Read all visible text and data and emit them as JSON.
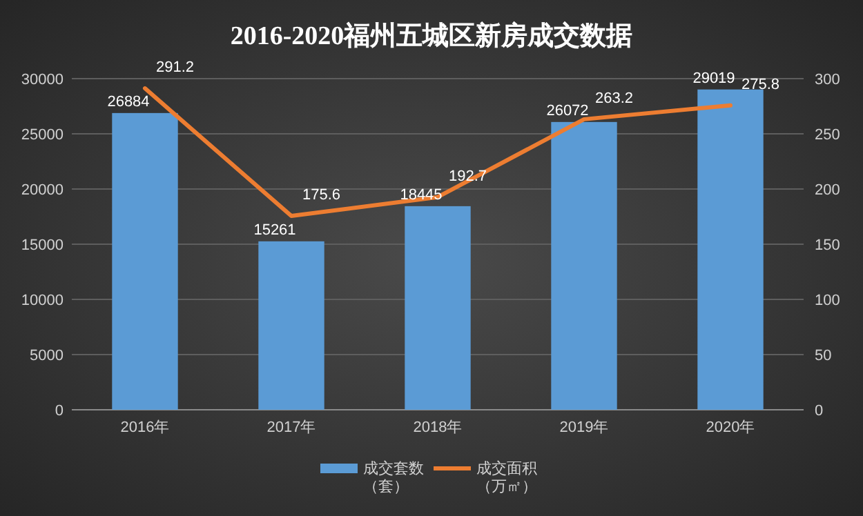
{
  "chart_data": {
    "type": "bar",
    "title": "2016-2020福州五城区新房成交数据",
    "categories": [
      "2016年",
      "2017年",
      "2018年",
      "2019年",
      "2020年"
    ],
    "series": [
      {
        "name": "成交套数（套）",
        "color": "#5b9bd5",
        "values": [
          26884,
          15261,
          18445,
          26072,
          29019
        ]
      },
      {
        "name": "成交面积（万㎡）",
        "type": "line",
        "axis": "y2",
        "color": "#ed7d31",
        "values": [
          291.2,
          175.6,
          192.7,
          263.2,
          275.8
        ]
      }
    ],
    "ylim": [
      0,
      30000
    ],
    "yticks": [
      0,
      5000,
      10000,
      15000,
      20000,
      25000,
      30000
    ],
    "y2lim": [
      0,
      300
    ],
    "y2ticks": [
      0,
      50,
      100,
      150,
      200,
      250,
      300
    ],
    "grid": "y",
    "legend": "bottom",
    "data_labels": true,
    "marker": "none",
    "line_style": "solid"
  }
}
